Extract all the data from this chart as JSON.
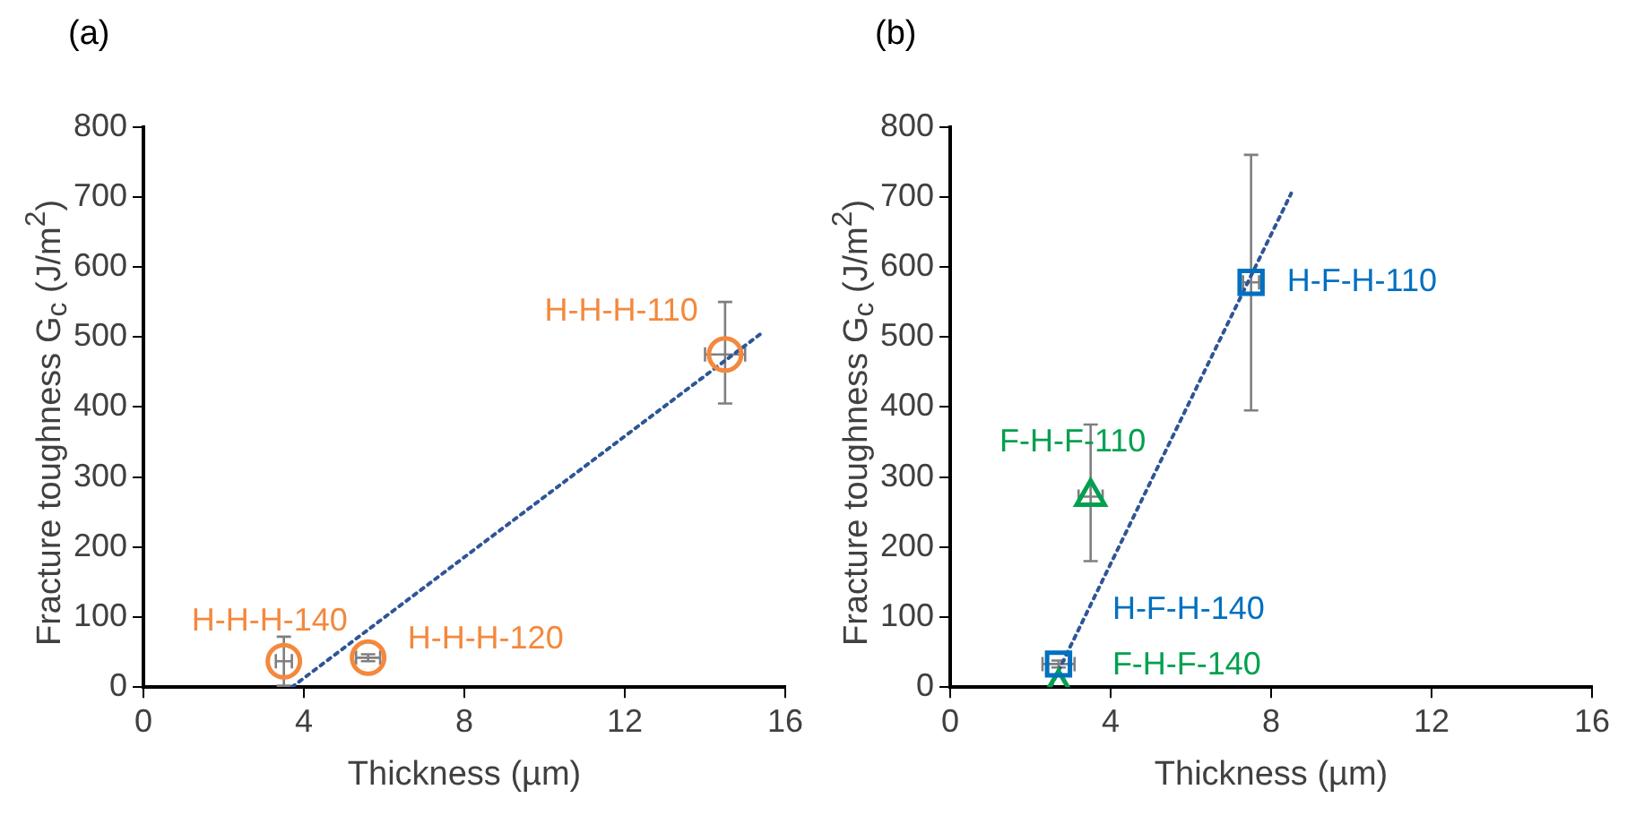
{
  "chart_data": [
    {
      "type": "scatter",
      "title": "(a)",
      "xlabel": "Thickness (µm)",
      "ylabel": "Fracture toughness G$_{c}$ (J/m$^{2}$)",
      "xlim": [
        0,
        16
      ],
      "xticks": [
        0,
        4,
        8,
        12,
        16
      ],
      "ylim": [
        0,
        800
      ],
      "yticks": [
        0,
        100,
        200,
        300,
        400,
        500,
        600,
        700,
        800
      ],
      "grid": false,
      "legend": false,
      "series": [
        {
          "name": "H-H-H-140",
          "color": "#f4883c",
          "marker": "circle",
          "x": [
            3.5
          ],
          "values": [
            37
          ],
          "errors": [
            [
              2,
              72
            ]
          ],
          "xerrors": [
            0.2
          ]
        },
        {
          "name": "H-H-H-120",
          "color": "#f4883c",
          "marker": "circle",
          "x": [
            5.6
          ],
          "values": [
            42
          ],
          "errors": [
            5
          ],
          "xerrors": [
            0.3
          ]
        },
        {
          "name": "H-H-H-110",
          "color": "#f4883c",
          "marker": "circle",
          "x": [
            14.5
          ],
          "values": [
            475
          ],
          "errors": [
            [
              405,
              550
            ]
          ],
          "xerrors": [
            0.5
          ]
        },
        {
          "type": "line",
          "color": "#2f5597",
          "line_style": "dotted",
          "marker": "none",
          "x": [
            3.7,
            15.4
          ],
          "values": [
            0,
            505
          ]
        }
      ]
    },
    {
      "type": "scatter",
      "title": "(b)",
      "xlabel": "Thickness (µm)",
      "ylabel": "Fracture toughness G$_{c}$ (J/m$^{2}$)",
      "xlim": [
        0,
        16
      ],
      "xticks": [
        0,
        4,
        8,
        12,
        16
      ],
      "ylim": [
        0,
        800
      ],
      "yticks": [
        0,
        100,
        200,
        300,
        400,
        500,
        600,
        700,
        800
      ],
      "grid": false,
      "legend": false,
      "series": [
        {
          "name": "H-F-H-110",
          "color": "#0070c0",
          "marker": "square",
          "x": [
            7.5
          ],
          "values": [
            578
          ],
          "errors": [
            [
              395,
              760
            ]
          ],
          "xerrors": [
            0.2
          ]
        },
        {
          "name": "F-H-F-110",
          "color": "#00a050",
          "marker": "triangle",
          "x": [
            3.5
          ],
          "values": [
            272
          ],
          "errors": [
            [
              180,
              375
            ]
          ],
          "xerrors": [
            0.3
          ]
        },
        {
          "name": "H-F-H-140",
          "color": "#0070c0",
          "marker": "square",
          "x": [
            2.7
          ],
          "values": [
            33
          ],
          "errors": [
            5
          ],
          "xerrors": [
            0.4
          ]
        },
        {
          "name": "F-H-F-140",
          "color": "#00a050",
          "marker": "triangle",
          "x": [
            2.7
          ],
          "values": [
            0
          ]
        },
        {
          "type": "line",
          "color": "#2f5597",
          "line_style": "dotted",
          "marker": "none",
          "x": [
            2.5,
            8.5
          ],
          "values": [
            0,
            705
          ]
        }
      ]
    }
  ]
}
